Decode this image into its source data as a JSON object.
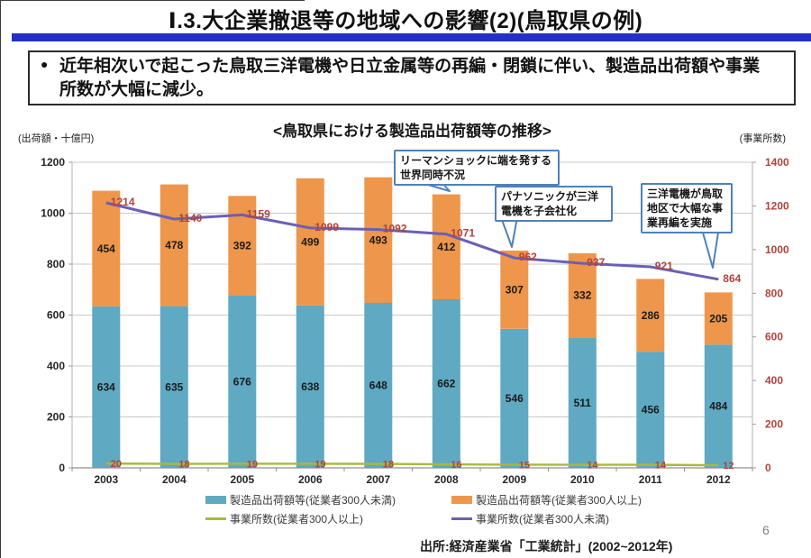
{
  "header": {
    "title": "Ⅰ.3.大企業撤退等の地域への影響(2)(鳥取県の例)"
  },
  "summary": {
    "bullet": "●",
    "text": "近年相次いで起こった鳥取三洋電機や日立金属等の再編・閉鎖に伴い、製造品出荷額や事業所数が大幅に減少。"
  },
  "chart_data": {
    "type": "bar",
    "subtype": "stacked-bar-with-lines",
    "title": "<鳥取県における製造品出荷額等の推移>",
    "categories": [
      "2003",
      "2004",
      "2005",
      "2006",
      "2007",
      "2008",
      "2009",
      "2010",
      "2011",
      "2012"
    ],
    "series": [
      {
        "name": "製造品出荷額等(従業者300人未満)",
        "kind": "bar",
        "axis": "left",
        "color_key": "bar_small",
        "values": [
          634,
          635,
          676,
          638,
          648,
          662,
          546,
          511,
          456,
          484
        ]
      },
      {
        "name": "製造品出荷額等(従業者300人以上)",
        "kind": "bar",
        "axis": "left",
        "color_key": "bar_large",
        "values": [
          454,
          478,
          392,
          499,
          493,
          412,
          307,
          332,
          286,
          205
        ]
      },
      {
        "name": "事業所数(従業者300人以上)",
        "kind": "line",
        "axis": "right",
        "color_key": "line_large",
        "values": [
          20,
          18,
          19,
          19,
          18,
          16,
          15,
          14,
          14,
          12
        ]
      },
      {
        "name": "事業所数(従業者300人未満)",
        "kind": "line",
        "axis": "right",
        "color_key": "line_small",
        "values": [
          1214,
          1140,
          1159,
          1099,
          1092,
          1071,
          962,
          937,
          921,
          864
        ]
      }
    ],
    "left_axis": {
      "label": "(出荷額・十億円)",
      "min": 0,
      "max": 1200,
      "step": 200
    },
    "right_axis": {
      "label": "(事業所数)",
      "min": 0,
      "max": 1400,
      "step": 200
    },
    "grid": true,
    "legend_position": "bottom",
    "annotations": [
      {
        "text": "リーマンショックに端を発する世界同時不況"
      },
      {
        "text": "パナソニックが三洋電機を子会社化"
      },
      {
        "text": "三洋電機が鳥取地区で大幅な事業再編を実施"
      }
    ]
  },
  "footer": {
    "source": "出所:経済産業省「工業統計」(2002~2012年)",
    "page_number": "6"
  },
  "colors": {
    "bar_small": "#5FA9C3",
    "bar_large": "#EE964B",
    "line_large": "#AAB93C",
    "line_small": "#6A60B5",
    "value_label_red": "#B2423B",
    "callout_border": "#4E81BD",
    "title_rule_blue": "#2231C3",
    "grid": "#C9C9C9",
    "axis": "#9B9B9B"
  }
}
